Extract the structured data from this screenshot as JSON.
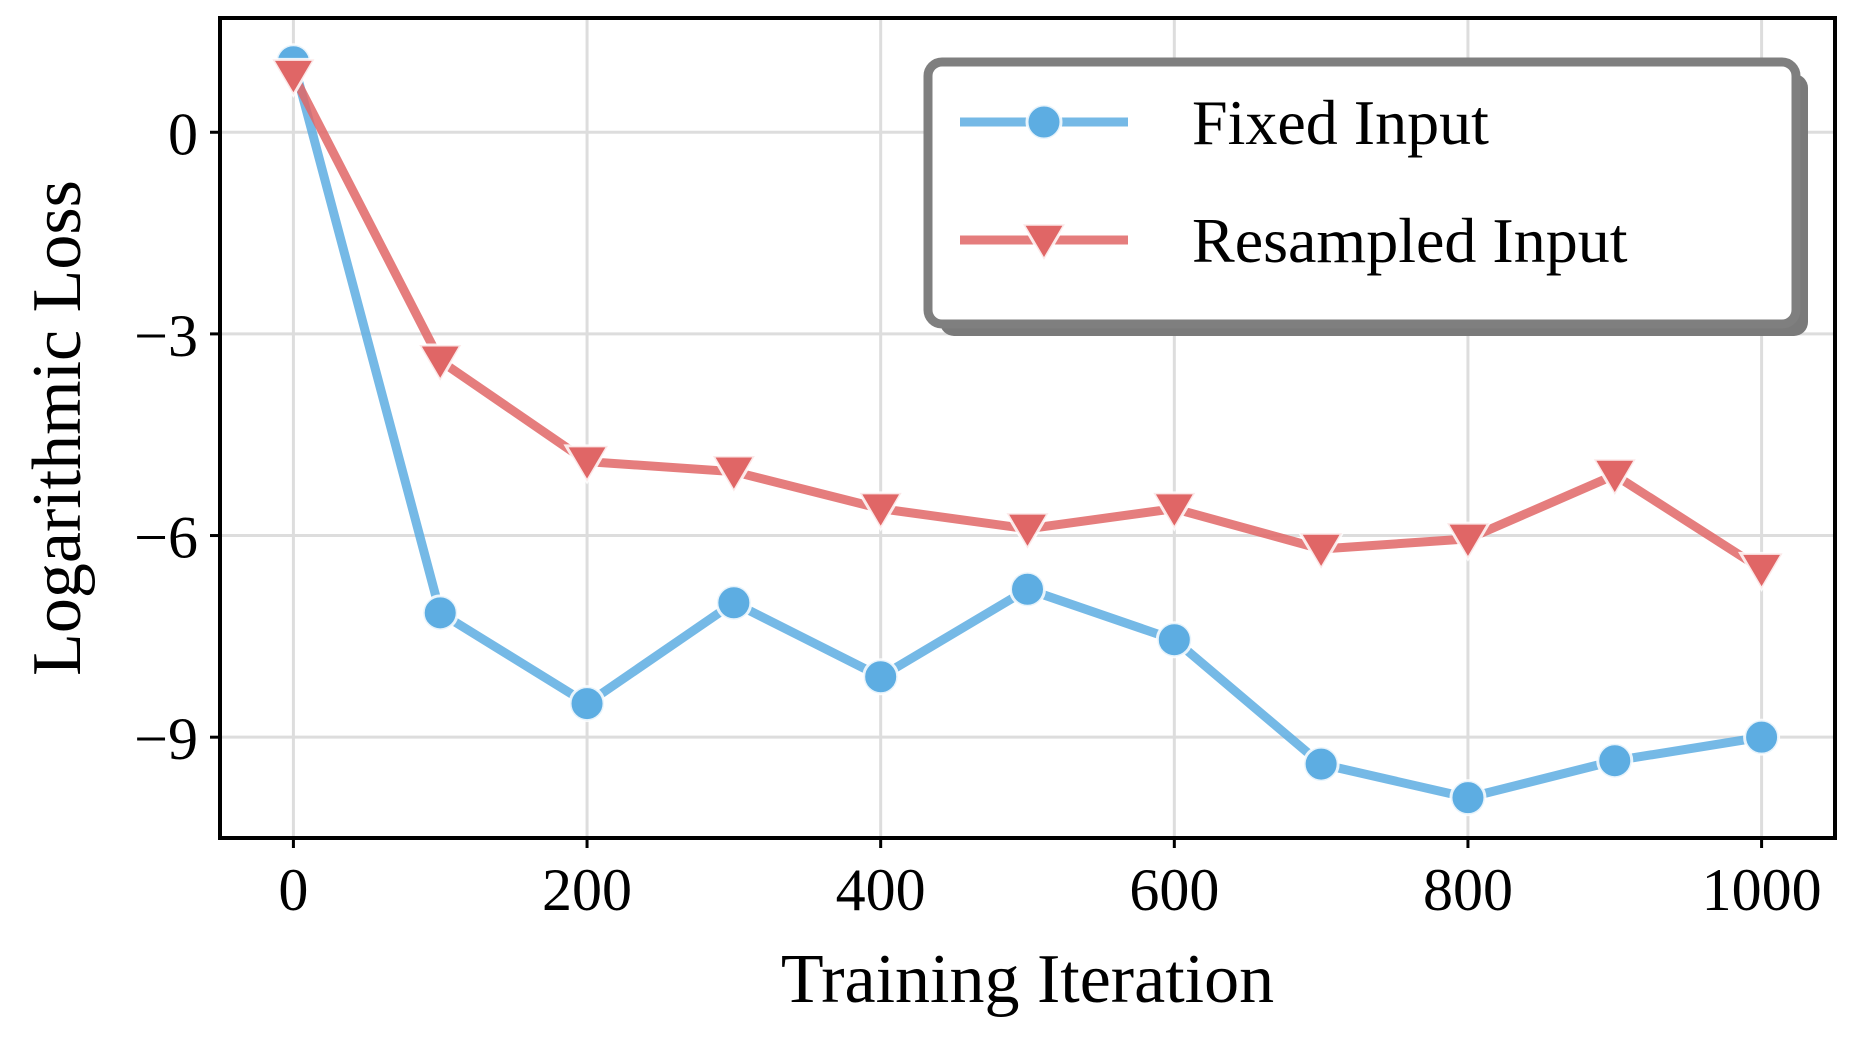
{
  "chart_data": {
    "type": "line",
    "title": "",
    "xlabel": "Training Iteration",
    "ylabel": "Logarithmic Loss",
    "xlim": [
      -50,
      1050
    ],
    "ylim": [
      -10.5,
      1.7
    ],
    "xticks": [
      0,
      200,
      400,
      600,
      800,
      1000
    ],
    "xtick_labels": [
      "0",
      "200",
      "400",
      "600",
      "800",
      "1000"
    ],
    "yticks": [
      0,
      -3,
      -6,
      -9
    ],
    "ytick_labels": [
      "0",
      "−3",
      "−6",
      "−9"
    ],
    "grid": true,
    "legend_position": "top-right",
    "x": [
      0,
      100,
      200,
      300,
      400,
      500,
      600,
      700,
      800,
      900,
      1000
    ],
    "series": [
      {
        "name": "Fixed Input",
        "marker": "circle",
        "color": "#5DADE2",
        "values": [
          1.05,
          -7.15,
          -8.5,
          -7.0,
          -8.1,
          -6.8,
          -7.55,
          -9.4,
          -9.9,
          -9.35,
          -9.0
        ]
      },
      {
        "name": "Resampled Input",
        "marker": "triangle-down",
        "color": "#E06666",
        "values": [
          0.85,
          -3.4,
          -4.9,
          -5.05,
          -5.6,
          -5.9,
          -5.6,
          -6.2,
          -6.05,
          -5.1,
          -6.5
        ]
      }
    ]
  }
}
